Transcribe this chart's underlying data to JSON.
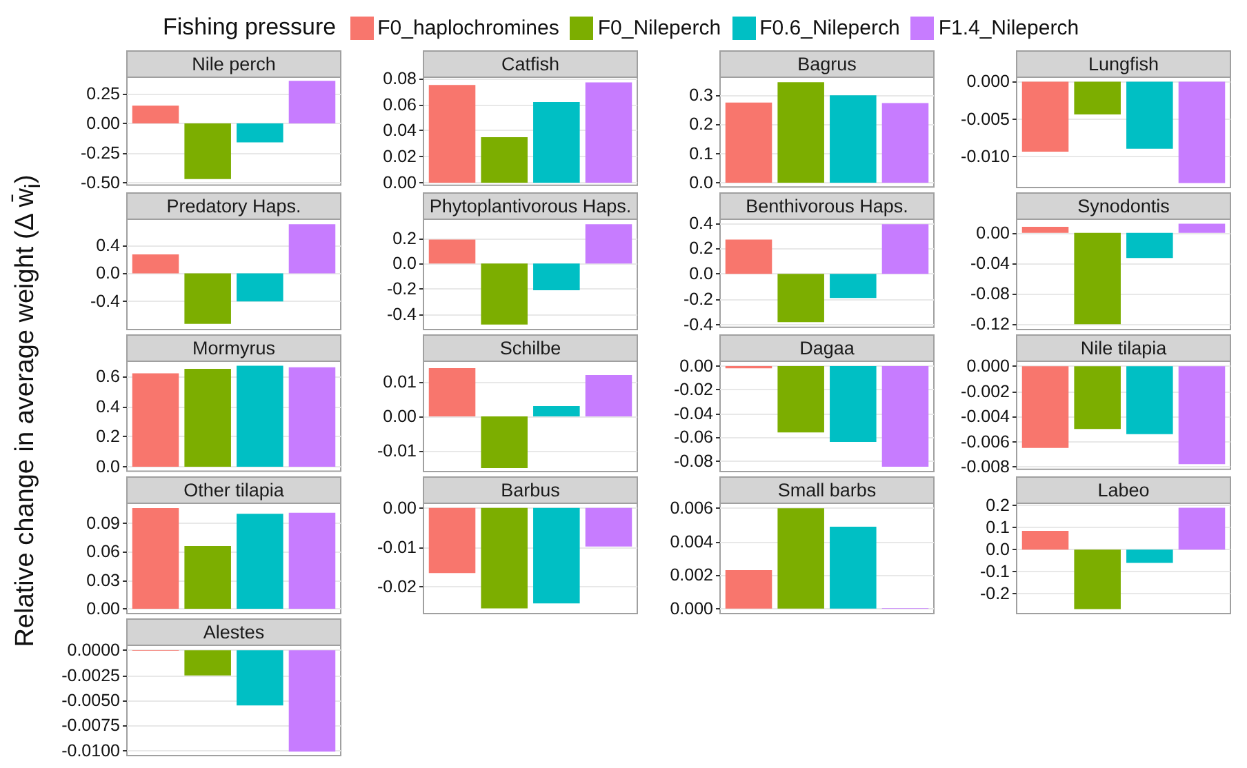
{
  "chart_data": [
    {
      "type": "bar",
      "title": "Nile perch",
      "legend_title": "Fishing pressure",
      "legend": "top",
      "ylabel": "Relative change in average weight (Δ w̄$_{i}$)",
      "categories": [
        null
      ],
      "tick_labels": "y",
      "grid": "y",
      "ylim": [
        -0.52,
        0.39
      ],
      "yticks": [
        {
          "value": -0.5,
          "label": "-0.50"
        },
        {
          "value": -0.25,
          "label": "-0.25"
        },
        {
          "value": 0,
          "label": "0.00"
        },
        {
          "value": 0.25,
          "label": "0.25"
        }
      ],
      "series": [
        {
          "name": "F0_haplochromines",
          "color": "#f8766d",
          "values": [
            0.15
          ]
        },
        {
          "name": "F0_Nileperch",
          "color": "#7cae00",
          "values": [
            -0.47
          ]
        },
        {
          "name": "F0.6_Nileperch",
          "color": "#00bfc4",
          "values": [
            -0.16
          ]
        },
        {
          "name": "F1.4_Nileperch",
          "color": "#c77cff",
          "values": [
            0.36
          ]
        }
      ]
    },
    {
      "type": "bar",
      "title": "Catfish",
      "categories": [
        null
      ],
      "tick_labels": "y",
      "grid": "y",
      "ylim": [
        -0.002,
        0.081
      ],
      "yticks": [
        {
          "value": 0,
          "label": "0.00"
        },
        {
          "value": 0.02,
          "label": "0.02"
        },
        {
          "value": 0.04,
          "label": "0.04"
        },
        {
          "value": 0.06,
          "label": "0.06"
        },
        {
          "value": 0.08,
          "label": "0.08"
        }
      ],
      "series": [
        {
          "color": "#f8766d",
          "values": [
            0.075
          ]
        },
        {
          "color": "#7cae00",
          "values": [
            0.035
          ]
        },
        {
          "color": "#00bfc4",
          "values": [
            0.062
          ]
        },
        {
          "color": "#c77cff",
          "values": [
            0.077
          ]
        }
      ]
    },
    {
      "type": "bar",
      "title": "Bagrus",
      "categories": [
        null
      ],
      "tick_labels": "y",
      "grid": "y",
      "ylim": [
        -0.015,
        0.362
      ],
      "yticks": [
        {
          "value": 0,
          "label": "0.0"
        },
        {
          "value": 0.1,
          "label": "0.1"
        },
        {
          "value": 0.2,
          "label": "0.2"
        },
        {
          "value": 0.3,
          "label": "0.3"
        }
      ],
      "series": [
        {
          "color": "#f8766d",
          "values": [
            0.275
          ]
        },
        {
          "color": "#7cae00",
          "values": [
            0.345
          ]
        },
        {
          "color": "#00bfc4",
          "values": [
            0.3
          ]
        },
        {
          "color": "#c77cff",
          "values": [
            0.273
          ]
        }
      ]
    },
    {
      "type": "bar",
      "title": "Lungfish",
      "categories": [
        null
      ],
      "tick_labels": "y",
      "grid": "y",
      "ylim": [
        -0.0142,
        0.0006
      ],
      "yticks": [
        {
          "value": -0.01,
          "label": "-0.010"
        },
        {
          "value": -0.005,
          "label": "-0.005"
        },
        {
          "value": 0,
          "label": "0.000"
        }
      ],
      "series": [
        {
          "color": "#f8766d",
          "values": [
            -0.0094
          ]
        },
        {
          "color": "#7cae00",
          "values": [
            -0.0044
          ]
        },
        {
          "color": "#00bfc4",
          "values": [
            -0.009
          ]
        },
        {
          "color": "#c77cff",
          "values": [
            -0.0136
          ]
        }
      ]
    },
    {
      "type": "bar",
      "title": "Predatory Haps.",
      "categories": [
        null
      ],
      "tick_labels": "y",
      "grid": "y",
      "ylim": [
        -0.8,
        0.77
      ],
      "yticks": [
        {
          "value": -0.4,
          "label": "-0.4"
        },
        {
          "value": 0,
          "label": "0.0"
        },
        {
          "value": 0.4,
          "label": "0.4"
        }
      ],
      "series": [
        {
          "color": "#f8766d",
          "values": [
            0.27
          ]
        },
        {
          "color": "#7cae00",
          "values": [
            -0.72
          ]
        },
        {
          "color": "#00bfc4",
          "values": [
            -0.4
          ]
        },
        {
          "color": "#c77cff",
          "values": [
            0.7
          ]
        }
      ]
    },
    {
      "type": "bar",
      "title": "Phytoplantivorous Haps.",
      "categories": [
        null
      ],
      "tick_labels": "y",
      "grid": "y",
      "ylim": [
        -0.52,
        0.35
      ],
      "yticks": [
        {
          "value": -0.4,
          "label": "-0.4"
        },
        {
          "value": -0.2,
          "label": "-0.2"
        },
        {
          "value": 0,
          "label": "0.0"
        },
        {
          "value": 0.2,
          "label": "0.2"
        }
      ],
      "series": [
        {
          "color": "#f8766d",
          "values": [
            0.19
          ]
        },
        {
          "color": "#7cae00",
          "values": [
            -0.48
          ]
        },
        {
          "color": "#00bfc4",
          "values": [
            -0.21
          ]
        },
        {
          "color": "#c77cff",
          "values": [
            0.31
          ]
        }
      ]
    },
    {
      "type": "bar",
      "title": "Benthivorous Haps.",
      "categories": [
        null
      ],
      "tick_labels": "y",
      "grid": "y",
      "ylim": [
        -0.42,
        0.43
      ],
      "yticks": [
        {
          "value": -0.4,
          "label": "-0.4"
        },
        {
          "value": -0.2,
          "label": "-0.2"
        },
        {
          "value": 0,
          "label": "0.0"
        },
        {
          "value": 0.2,
          "label": "0.2"
        },
        {
          "value": 0.4,
          "label": "0.4"
        }
      ],
      "series": [
        {
          "color": "#f8766d",
          "values": [
            0.27
          ]
        },
        {
          "color": "#7cae00",
          "values": [
            -0.38
          ]
        },
        {
          "color": "#00bfc4",
          "values": [
            -0.19
          ]
        },
        {
          "color": "#c77cff",
          "values": [
            0.39
          ]
        }
      ]
    },
    {
      "type": "bar",
      "title": "Synodontis",
      "categories": [
        null
      ],
      "tick_labels": "y",
      "grid": "y",
      "ylim": [
        -0.127,
        0.018
      ],
      "yticks": [
        {
          "value": -0.12,
          "label": "-0.12"
        },
        {
          "value": -0.08,
          "label": "-0.08"
        },
        {
          "value": -0.04,
          "label": "-0.04"
        },
        {
          "value": 0,
          "label": "0.00"
        }
      ],
      "series": [
        {
          "color": "#f8766d",
          "values": [
            0.008
          ]
        },
        {
          "color": "#7cae00",
          "values": [
            -0.12
          ]
        },
        {
          "color": "#00bfc4",
          "values": [
            -0.033
          ]
        },
        {
          "color": "#c77cff",
          "values": [
            0.012
          ]
        }
      ]
    },
    {
      "type": "bar",
      "title": "Mormyrus",
      "categories": [
        null
      ],
      "tick_labels": "y",
      "grid": "y",
      "ylim": [
        -0.03,
        0.7
      ],
      "yticks": [
        {
          "value": 0,
          "label": "0.0"
        },
        {
          "value": 0.2,
          "label": "0.2"
        },
        {
          "value": 0.4,
          "label": "0.4"
        },
        {
          "value": 0.6,
          "label": "0.6"
        }
      ],
      "series": [
        {
          "color": "#f8766d",
          "values": [
            0.62
          ]
        },
        {
          "color": "#7cae00",
          "values": [
            0.65
          ]
        },
        {
          "color": "#00bfc4",
          "values": [
            0.67
          ]
        },
        {
          "color": "#c77cff",
          "values": [
            0.66
          ]
        }
      ]
    },
    {
      "type": "bar",
      "title": "Schilbe",
      "categories": [
        null
      ],
      "tick_labels": "y",
      "grid": "y",
      "ylim": [
        -0.016,
        0.016
      ],
      "yticks": [
        {
          "value": -0.01,
          "label": "-0.01"
        },
        {
          "value": 0,
          "label": "0.00"
        },
        {
          "value": 0.01,
          "label": "0.01"
        }
      ],
      "series": [
        {
          "color": "#f8766d",
          "values": [
            0.014
          ]
        },
        {
          "color": "#7cae00",
          "values": [
            -0.015
          ]
        },
        {
          "color": "#00bfc4",
          "values": [
            0.003
          ]
        },
        {
          "color": "#c77cff",
          "values": [
            0.012
          ]
        }
      ]
    },
    {
      "type": "bar",
      "title": "Dagaa",
      "categories": [
        null
      ],
      "tick_labels": "y",
      "grid": "y",
      "ylim": [
        -0.089,
        0.004
      ],
      "yticks": [
        {
          "value": -0.08,
          "label": "-0.08"
        },
        {
          "value": -0.06,
          "label": "-0.06"
        },
        {
          "value": -0.04,
          "label": "-0.04"
        },
        {
          "value": -0.02,
          "label": "-0.02"
        },
        {
          "value": 0,
          "label": "0.00"
        }
      ],
      "series": [
        {
          "color": "#f8766d",
          "values": [
            -0.002
          ]
        },
        {
          "color": "#7cae00",
          "values": [
            -0.056
          ]
        },
        {
          "color": "#00bfc4",
          "values": [
            -0.064
          ]
        },
        {
          "color": "#c77cff",
          "values": [
            -0.085
          ]
        }
      ]
    },
    {
      "type": "bar",
      "title": "Nile tilapia",
      "categories": [
        null
      ],
      "tick_labels": "y",
      "grid": "y",
      "ylim": [
        -0.0082,
        0.0004
      ],
      "yticks": [
        {
          "value": -0.008,
          "label": "-0.008"
        },
        {
          "value": -0.006,
          "label": "-0.006"
        },
        {
          "value": -0.004,
          "label": "-0.004"
        },
        {
          "value": -0.002,
          "label": "-0.002"
        },
        {
          "value": 0,
          "label": "0.000"
        }
      ],
      "series": [
        {
          "color": "#f8766d",
          "values": [
            -0.0065
          ]
        },
        {
          "color": "#7cae00",
          "values": [
            -0.005
          ]
        },
        {
          "color": "#00bfc4",
          "values": [
            -0.0054
          ]
        },
        {
          "color": "#c77cff",
          "values": [
            -0.0078
          ]
        }
      ]
    },
    {
      "type": "bar",
      "title": "Other tilapia",
      "categories": [
        null
      ],
      "tick_labels": "y",
      "grid": "y",
      "ylim": [
        -0.005,
        0.111
      ],
      "yticks": [
        {
          "value": 0,
          "label": "0.00"
        },
        {
          "value": 0.03,
          "label": "0.03"
        },
        {
          "value": 0.06,
          "label": "0.06"
        },
        {
          "value": 0.09,
          "label": "0.09"
        }
      ],
      "series": [
        {
          "color": "#f8766d",
          "values": [
            0.106
          ]
        },
        {
          "color": "#7cae00",
          "values": [
            0.066
          ]
        },
        {
          "color": "#00bfc4",
          "values": [
            0.1
          ]
        },
        {
          "color": "#c77cff",
          "values": [
            0.101
          ]
        }
      ]
    },
    {
      "type": "bar",
      "title": "Barbus",
      "categories": [
        null
      ],
      "tick_labels": "y",
      "grid": "y",
      "ylim": [
        -0.0268,
        0.0012
      ],
      "yticks": [
        {
          "value": -0.02,
          "label": "-0.02"
        },
        {
          "value": -0.01,
          "label": "-0.01"
        },
        {
          "value": 0,
          "label": "0.00"
        }
      ],
      "series": [
        {
          "color": "#f8766d",
          "values": [
            -0.0165
          ]
        },
        {
          "color": "#7cae00",
          "values": [
            -0.0255
          ]
        },
        {
          "color": "#00bfc4",
          "values": [
            -0.0242
          ]
        },
        {
          "color": "#c77cff",
          "values": [
            -0.0098
          ]
        }
      ]
    },
    {
      "type": "bar",
      "title": "Small barbs",
      "categories": [
        null
      ],
      "tick_labels": "y",
      "grid": "y",
      "ylim": [
        -0.0003,
        0.0063
      ],
      "yticks": [
        {
          "value": 0,
          "label": "0.000"
        },
        {
          "value": 0.002,
          "label": "0.002"
        },
        {
          "value": 0.004,
          "label": "0.004"
        },
        {
          "value": 0.006,
          "label": "0.006"
        }
      ],
      "series": [
        {
          "color": "#f8766d",
          "values": [
            0.0023
          ]
        },
        {
          "color": "#7cae00",
          "values": [
            0.006
          ]
        },
        {
          "color": "#00bfc4",
          "values": [
            0.0049
          ]
        },
        {
          "color": "#c77cff",
          "values": [
            3e-05
          ]
        }
      ]
    },
    {
      "type": "bar",
      "title": "Labeo",
      "categories": [
        null
      ],
      "tick_labels": "y",
      "grid": "y",
      "ylim": [
        -0.29,
        0.21
      ],
      "yticks": [
        {
          "value": -0.2,
          "label": "-0.2"
        },
        {
          "value": -0.1,
          "label": "-0.1"
        },
        {
          "value": 0,
          "label": "0.0"
        },
        {
          "value": 0.1,
          "label": "0.1"
        },
        {
          "value": 0.2,
          "label": "0.2"
        }
      ],
      "series": [
        {
          "color": "#f8766d",
          "values": [
            0.085
          ]
        },
        {
          "color": "#7cae00",
          "values": [
            -0.27
          ]
        },
        {
          "color": "#00bfc4",
          "values": [
            -0.06
          ]
        },
        {
          "color": "#c77cff",
          "values": [
            0.19
          ]
        }
      ]
    },
    {
      "type": "bar",
      "title": "Alestes",
      "categories": [
        null
      ],
      "tick_labels": "y",
      "grid": "y",
      "ylim": [
        -0.0105,
        0.0005
      ],
      "yticks": [
        {
          "value": -0.01,
          "label": "-0.0100"
        },
        {
          "value": -0.0075,
          "label": "-0.0075"
        },
        {
          "value": -0.005,
          "label": "-0.0050"
        },
        {
          "value": -0.0025,
          "label": "-0.0025"
        },
        {
          "value": 0,
          "label": "0.0000"
        }
      ],
      "series": [
        {
          "color": "#f8766d",
          "values": [
            -5e-05
          ]
        },
        {
          "color": "#7cae00",
          "values": [
            -0.0025
          ]
        },
        {
          "color": "#00bfc4",
          "values": [
            -0.0055
          ]
        },
        {
          "color": "#c77cff",
          "values": [
            -0.0101
          ]
        }
      ]
    }
  ]
}
